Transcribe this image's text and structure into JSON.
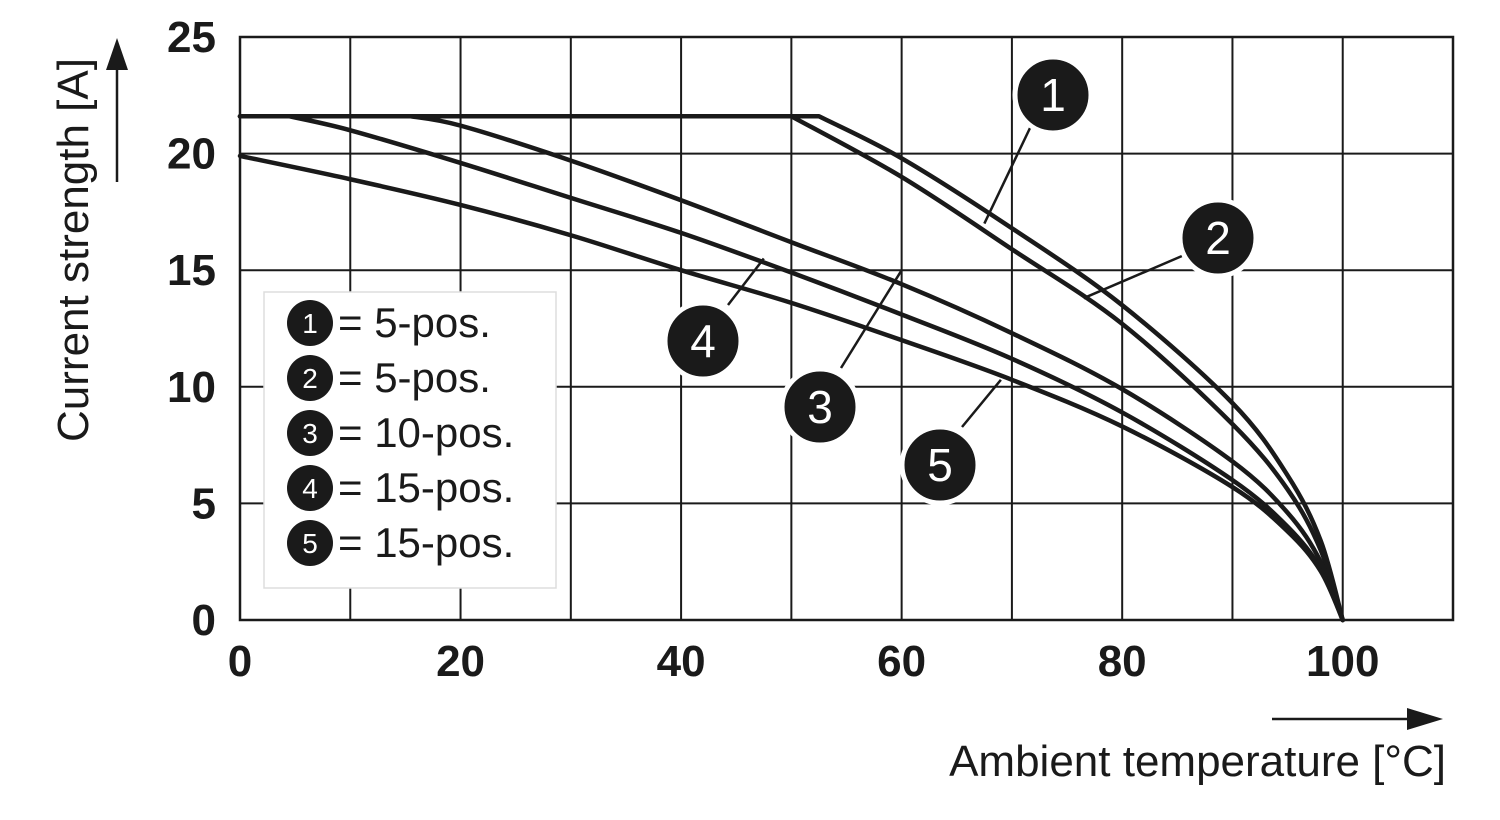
{
  "chart_data": {
    "type": "line",
    "xlabel": "Ambient temperature [°C]",
    "ylabel": "Current strength [A]",
    "xlim": [
      0,
      110
    ],
    "ylim": [
      0,
      25
    ],
    "xticks": [
      0,
      20,
      40,
      60,
      80,
      100
    ],
    "yticks": [
      0,
      5,
      10,
      15,
      20,
      25
    ],
    "grid": true,
    "legend_position": "bottom-left",
    "legend": [
      {
        "marker": "1",
        "text": "= 5-pos."
      },
      {
        "marker": "2",
        "text": "= 5-pos."
      },
      {
        "marker": "3",
        "text": "= 10-pos."
      },
      {
        "marker": "4",
        "text": "= 15-pos."
      },
      {
        "marker": "5",
        "text": "= 15-pos."
      }
    ],
    "series": [
      {
        "name": "1",
        "x": [
          0,
          52.5,
          60,
          70,
          80,
          90,
          95,
          98,
          100
        ],
        "y": [
          21.6,
          21.6,
          19.8,
          16.8,
          13.5,
          9.3,
          6.2,
          3.4,
          0
        ]
      },
      {
        "name": "2",
        "x": [
          0,
          50,
          60,
          70,
          80,
          90,
          95,
          98,
          100
        ],
        "y": [
          21.6,
          21.6,
          19.0,
          15.9,
          12.7,
          8.4,
          5.6,
          3.0,
          0
        ]
      },
      {
        "name": "3",
        "x": [
          0,
          15.5,
          20,
          30,
          40,
          50,
          60,
          70,
          80,
          90,
          95,
          98,
          100
        ],
        "y": [
          21.6,
          21.6,
          21.2,
          19.7,
          18.0,
          16.2,
          14.4,
          12.3,
          9.9,
          6.8,
          4.6,
          2.5,
          0
        ]
      },
      {
        "name": "4",
        "x": [
          0,
          4.5,
          10,
          20,
          30,
          40,
          50,
          60,
          70,
          80,
          90,
          95,
          98,
          100
        ],
        "y": [
          21.6,
          21.6,
          21.0,
          19.6,
          18.1,
          16.6,
          14.9,
          13.1,
          11.2,
          8.9,
          6.0,
          4.0,
          2.2,
          0
        ]
      },
      {
        "name": "5",
        "x": [
          0,
          10,
          20,
          30,
          40,
          50,
          60,
          70,
          80,
          90,
          95,
          98,
          100
        ],
        "y": [
          19.9,
          18.9,
          17.8,
          16.5,
          15.0,
          13.6,
          12.0,
          10.3,
          8.3,
          5.7,
          3.8,
          2.1,
          0
        ]
      }
    ],
    "annotations": [
      {
        "marker": "1",
        "target": [
          67.5,
          17.0
        ]
      },
      {
        "marker": "2",
        "target": [
          76.5,
          13.8
        ]
      },
      {
        "marker": "3",
        "target": [
          60.0,
          15.0
        ]
      },
      {
        "marker": "4",
        "target": [
          47.5,
          15.5
        ]
      },
      {
        "marker": "5",
        "target": [
          69.0,
          10.3
        ]
      }
    ]
  }
}
